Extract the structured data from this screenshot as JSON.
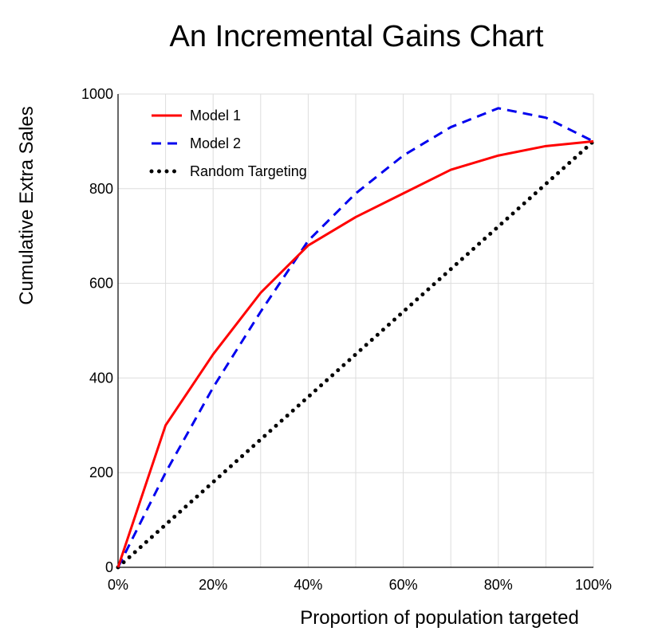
{
  "chart_data": {
    "type": "line",
    "title": "An Incremental Gains Chart",
    "xlabel": "Proportion of population targeted",
    "ylabel": "Cumulative Extra Sales",
    "xlim": [
      0,
      100
    ],
    "ylim": [
      0,
      1000
    ],
    "x_ticks": [
      0,
      20,
      40,
      60,
      80,
      100
    ],
    "x_tick_labels": [
      "0%",
      "20%",
      "40%",
      "60%",
      "80%",
      "100%"
    ],
    "y_ticks": [
      0,
      200,
      400,
      600,
      800,
      1000
    ],
    "y_tick_labels": [
      "0",
      "200",
      "400",
      "600",
      "800",
      "1000"
    ],
    "x_minor_grid": [
      10,
      30,
      50,
      70,
      90
    ],
    "grid": true,
    "legend_position": "top-left",
    "x": [
      0,
      10,
      20,
      30,
      40,
      50,
      60,
      70,
      80,
      90,
      100
    ],
    "series": [
      {
        "name": "Model 1",
        "color": "#ff0000",
        "style": "solid",
        "values": [
          0,
          300,
          450,
          580,
          680,
          740,
          790,
          840,
          870,
          890,
          900
        ]
      },
      {
        "name": "Model 2",
        "color": "#0000ee",
        "style": "dashed",
        "values": [
          0,
          200,
          380,
          540,
          690,
          790,
          870,
          930,
          970,
          950,
          900
        ]
      },
      {
        "name": "Random Targeting",
        "color": "#000000",
        "style": "dotted",
        "values": [
          0,
          90,
          180,
          270,
          360,
          450,
          540,
          630,
          720,
          810,
          900
        ]
      }
    ]
  }
}
